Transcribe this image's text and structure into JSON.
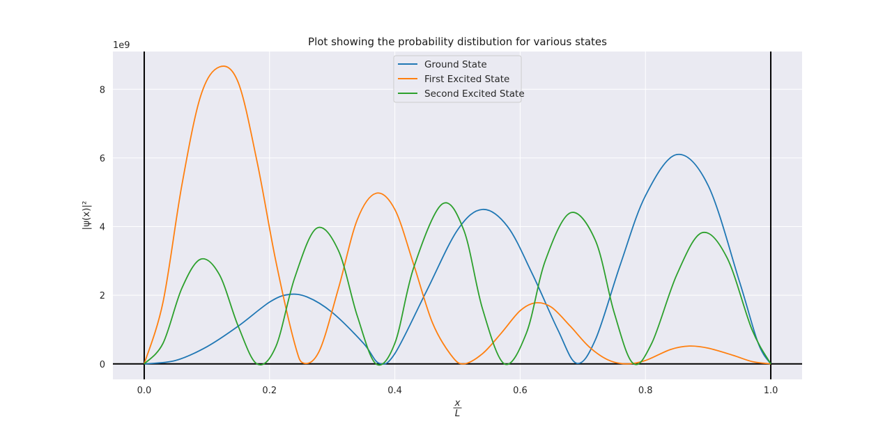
{
  "chart_data": {
    "type": "line",
    "title": "Plot showing the probability distibution for various states",
    "xlabel_num": "x",
    "xlabel_den": "L",
    "ylabel": "|ψ(x)|²",
    "y_offset_text": "1e9",
    "xlim": [
      -0.05,
      1.05
    ],
    "ylim": [
      -0.45,
      9.1
    ],
    "y_scale_factor": 1000000000.0,
    "x_ticks": [
      0.0,
      0.2,
      0.4,
      0.6,
      0.8,
      1.0
    ],
    "x_tick_labels": [
      "0.0",
      "0.2",
      "0.4",
      "0.6",
      "0.8",
      "1.0"
    ],
    "y_ticks": [
      0,
      2,
      4,
      6,
      8
    ],
    "y_tick_labels": [
      "0",
      "2",
      "4",
      "6",
      "8"
    ],
    "grid": true,
    "legend_position": "top-center",
    "background": "#eaeaf2",
    "reference_lines": {
      "vertical_x": [
        0.0,
        1.0
      ],
      "horizontal_y": [
        0
      ]
    },
    "series": [
      {
        "name": "Ground State",
        "color": "#1f77b4",
        "points": [
          [
            0.0,
            0.0
          ],
          [
            0.05,
            0.1
          ],
          [
            0.1,
            0.5
          ],
          [
            0.15,
            1.1
          ],
          [
            0.2,
            1.8
          ],
          [
            0.23,
            2.02
          ],
          [
            0.26,
            1.95
          ],
          [
            0.3,
            1.5
          ],
          [
            0.35,
            0.6
          ],
          [
            0.375,
            0.02
          ],
          [
            0.4,
            0.3
          ],
          [
            0.45,
            2.1
          ],
          [
            0.5,
            3.9
          ],
          [
            0.54,
            4.5
          ],
          [
            0.58,
            4.0
          ],
          [
            0.62,
            2.6
          ],
          [
            0.66,
            1.0
          ],
          [
            0.69,
            0.02
          ],
          [
            0.72,
            0.7
          ],
          [
            0.76,
            2.9
          ],
          [
            0.8,
            4.9
          ],
          [
            0.85,
            6.1
          ],
          [
            0.9,
            5.2
          ],
          [
            0.95,
            2.4
          ],
          [
            0.98,
            0.6
          ],
          [
            1.0,
            0.0
          ]
        ]
      },
      {
        "name": "First Excited State",
        "color": "#ff7f0e",
        "points": [
          [
            0.0,
            0.0
          ],
          [
            0.03,
            1.8
          ],
          [
            0.06,
            5.2
          ],
          [
            0.09,
            7.8
          ],
          [
            0.12,
            8.65
          ],
          [
            0.15,
            8.2
          ],
          [
            0.18,
            5.9
          ],
          [
            0.21,
            3.0
          ],
          [
            0.24,
            0.6
          ],
          [
            0.255,
            0.02
          ],
          [
            0.28,
            0.4
          ],
          [
            0.31,
            2.2
          ],
          [
            0.34,
            4.2
          ],
          [
            0.37,
            4.97
          ],
          [
            0.4,
            4.5
          ],
          [
            0.43,
            2.9
          ],
          [
            0.46,
            1.2
          ],
          [
            0.49,
            0.25
          ],
          [
            0.51,
            0.0
          ],
          [
            0.54,
            0.3
          ],
          [
            0.57,
            0.9
          ],
          [
            0.6,
            1.55
          ],
          [
            0.625,
            1.78
          ],
          [
            0.65,
            1.65
          ],
          [
            0.68,
            1.1
          ],
          [
            0.71,
            0.5
          ],
          [
            0.74,
            0.12
          ],
          [
            0.77,
            0.0
          ],
          [
            0.8,
            0.1
          ],
          [
            0.84,
            0.42
          ],
          [
            0.87,
            0.52
          ],
          [
            0.9,
            0.46
          ],
          [
            0.94,
            0.25
          ],
          [
            0.97,
            0.07
          ],
          [
            1.0,
            0.0
          ]
        ]
      },
      {
        "name": "Second Excited State",
        "color": "#2ca02c",
        "points": [
          [
            0.0,
            0.0
          ],
          [
            0.03,
            0.6
          ],
          [
            0.06,
            2.2
          ],
          [
            0.09,
            3.05
          ],
          [
            0.12,
            2.6
          ],
          [
            0.15,
            1.1
          ],
          [
            0.18,
            0.0
          ],
          [
            0.21,
            0.5
          ],
          [
            0.24,
            2.5
          ],
          [
            0.275,
            3.95
          ],
          [
            0.31,
            3.3
          ],
          [
            0.34,
            1.4
          ],
          [
            0.37,
            0.0
          ],
          [
            0.4,
            0.6
          ],
          [
            0.43,
            2.8
          ],
          [
            0.475,
            4.65
          ],
          [
            0.51,
            3.9
          ],
          [
            0.54,
            1.6
          ],
          [
            0.575,
            0.0
          ],
          [
            0.61,
            0.9
          ],
          [
            0.64,
            3.0
          ],
          [
            0.68,
            4.4
          ],
          [
            0.72,
            3.6
          ],
          [
            0.75,
            1.5
          ],
          [
            0.78,
            0.02
          ],
          [
            0.81,
            0.6
          ],
          [
            0.85,
            2.6
          ],
          [
            0.89,
            3.82
          ],
          [
            0.93,
            3.1
          ],
          [
            0.97,
            1.0
          ],
          [
            1.0,
            0.0
          ]
        ]
      }
    ]
  }
}
